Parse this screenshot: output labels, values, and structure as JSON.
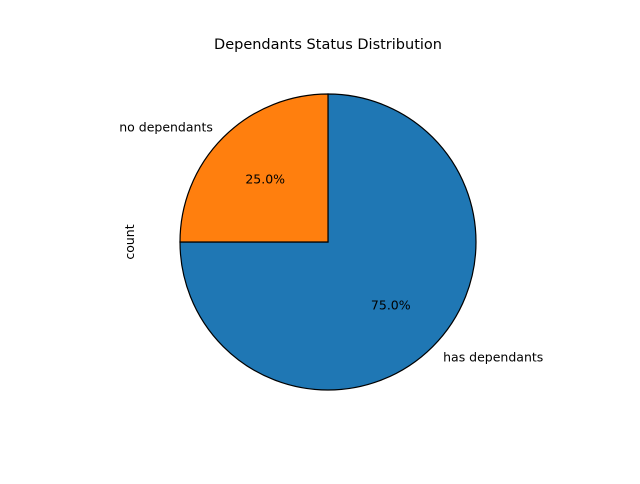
{
  "chart_data": {
    "type": "pie",
    "title": "Dependants Status Distribution",
    "ylabel": "count",
    "xlabel": "",
    "slices": [
      {
        "label": "has dependants",
        "value": 75.0,
        "percent_label": "75.0%",
        "color": "#1f77b4"
      },
      {
        "label": "no dependants",
        "value": 25.0,
        "percent_label": "25.0%",
        "color": "#ff7f0e"
      }
    ],
    "start_angle_deg": 90,
    "direction": "clockwise",
    "edge_color": "#000000"
  }
}
